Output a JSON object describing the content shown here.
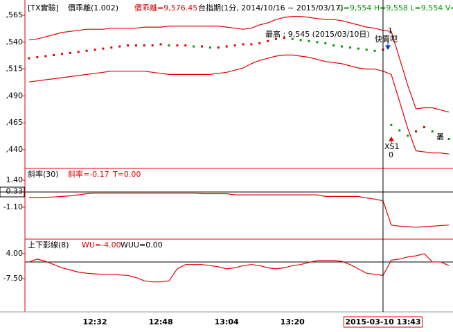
{
  "chart_data": [
    {
      "type": "line",
      "title": "[TX實驗]",
      "indicator": "價乖離(1.002)",
      "indicator_value": "價乖離=9,576.45",
      "subtitle": "台指期(1分, 2014/10/16 ~ 2015/03/17)",
      "quote": "C=9,554 H=9,558 L=9,554 V=1,21",
      "annotations": [
        "最高 : 9,545 (2015/03/10日)",
        "1",
        "快賣吧",
        "XS1",
        "0",
        "最"
      ],
      "ylim": [
        9422.6,
        9579.2
      ],
      "yticks": [
        {
          "value": 9565,
          "label": ",565"
        },
        {
          "value": 9540,
          "label": ",540"
        },
        {
          "value": 9515,
          "label": ",515"
        },
        {
          "value": 9490,
          "label": ",490"
        },
        {
          "value": 9465,
          "label": ",465"
        },
        {
          "value": 9440,
          "label": ",440"
        }
      ],
      "series": [
        {
          "color": "#e00000",
          "values": [
            9542,
            9543,
            9545,
            9547,
            9549,
            9550,
            9551,
            9552,
            9552,
            9552,
            9553,
            9553,
            9553,
            9553,
            9554,
            9554,
            9554,
            9555,
            9555,
            9555,
            9555,
            9555,
            9555,
            9555,
            9554,
            9553,
            9552,
            9553,
            9556,
            9558,
            9561,
            9563,
            9564,
            9564,
            9563,
            9562,
            9561,
            9561,
            9560,
            9558,
            9556,
            9554,
            9553,
            9551,
            9550,
            9525,
            9500,
            9478,
            9479,
            9479,
            9477,
            9475
          ]
        },
        {
          "color": "#e00000",
          "values": [
            9503,
            9504,
            9505,
            9506,
            9507,
            9508,
            9509,
            9510,
            9511,
            9512,
            9513,
            9513,
            9513,
            9513,
            9513,
            9512,
            9511,
            9510,
            9510,
            9510,
            9510,
            9510,
            9510,
            9511,
            9512,
            9514,
            9516,
            9520,
            9523,
            9525,
            9527,
            9528,
            9528,
            9527,
            9526,
            9524,
            9522,
            9521,
            9520,
            9518,
            9516,
            9515,
            9515,
            9513,
            9510,
            9485,
            9460,
            9439,
            9438,
            9437,
            9437,
            9436
          ]
        },
        {
          "marker": "dot",
          "up_color": "#e00000",
          "down_color": "#009900",
          "values": [
            9525,
            9526,
            9527,
            9528,
            9529,
            9530,
            9531,
            9532,
            9533,
            9534,
            9535,
            9536,
            9537,
            9537,
            9537,
            9537,
            9538,
            9537,
            9537,
            9537,
            9536,
            9536,
            9535,
            9535,
            9536,
            9537,
            9538,
            9538,
            9539,
            9541,
            9543,
            9544,
            9543,
            9542,
            9541,
            9540,
            9539,
            9537,
            9536,
            9535,
            9534,
            9533,
            9532,
            9533,
            9463,
            9458,
            9453,
            9457,
            9461,
            9457,
            9453,
            9450
          ]
        }
      ]
    },
    {
      "type": "line",
      "title": "斜率(30)",
      "value_text": "斜率=-0.17",
      "t_text": "T=0.00",
      "ylim": [
        -4.05,
        2.49
      ],
      "yticks": [
        {
          "value": 1.4,
          "label": "1.40"
        },
        0.33,
        {
          "value": -1.1,
          "label": "-1.10"
        }
      ],
      "series": [
        {
          "color": "#e00000",
          "values": [
            -0.2,
            -0.2,
            -0.18,
            -0.15,
            -0.1,
            -0.05,
            0.05,
            0.15,
            0.2,
            0.2,
            0.2,
            0.2,
            0.2,
            0.2,
            0.2,
            0.2,
            0.2,
            0.2,
            0.2,
            0.2,
            0.2,
            0.15,
            0.15,
            0.15,
            0.15,
            0.05,
            0.05,
            0.05,
            0.05,
            0.05,
            0.05,
            0.05,
            0.05,
            0.05,
            0.05,
            0.05,
            -0.1,
            -0.1,
            -0.1,
            -0.1,
            -0.1,
            -0.25,
            -0.35,
            -0.5,
            -2.75,
            -2.85,
            -2.9,
            -2.95,
            -2.9,
            -2.85,
            -2.8,
            -2.75
          ]
        }
      ]
    },
    {
      "type": "line",
      "title": "上下影線(8)",
      "wu_text": "WU=-4.00",
      "wuu_text": "WUU=0.00",
      "ylim": [
        -22.8,
        10.7
      ],
      "yticks": [
        {
          "value": 4,
          "label": "4.00"
        },
        {
          "value": -7.5,
          "label": "-7.50"
        }
      ],
      "categories": [
        null,
        null,
        null,
        null,
        null,
        null,
        null,
        null,
        "12:32",
        null,
        null,
        null,
        null,
        null,
        null,
        null,
        "12:48",
        null,
        null,
        null,
        null,
        null,
        null,
        null,
        "13:04",
        null,
        null,
        null,
        null,
        null,
        null,
        null,
        "13:20",
        null,
        null,
        null,
        null,
        null,
        null,
        null,
        null,
        null,
        null,
        "2015-03-10  13:43",
        null,
        null,
        null,
        null,
        null,
        null,
        null,
        null
      ],
      "series": [
        {
          "color": "#e00000",
          "values": [
            0.2,
            1.5,
            0.5,
            -1,
            -2.5,
            -3.5,
            -4.5,
            -5,
            -5.3,
            -5.5,
            -5.5,
            -5.8,
            -6,
            -7,
            -8.5,
            -9,
            -9,
            -8.5,
            -3,
            -1,
            -1,
            -1,
            -1.5,
            -2,
            -3,
            -2.5,
            -1.5,
            -1,
            -1.5,
            -2.5,
            -3,
            -2.5,
            -1.5,
            -1,
            0,
            0.8,
            0.8,
            0.8,
            0.5,
            -1,
            -3,
            -5,
            -5.5,
            -6,
            1,
            1.5,
            2.5,
            3,
            4,
            0.2,
            0.2,
            -1.5
          ]
        }
      ]
    }
  ]
}
